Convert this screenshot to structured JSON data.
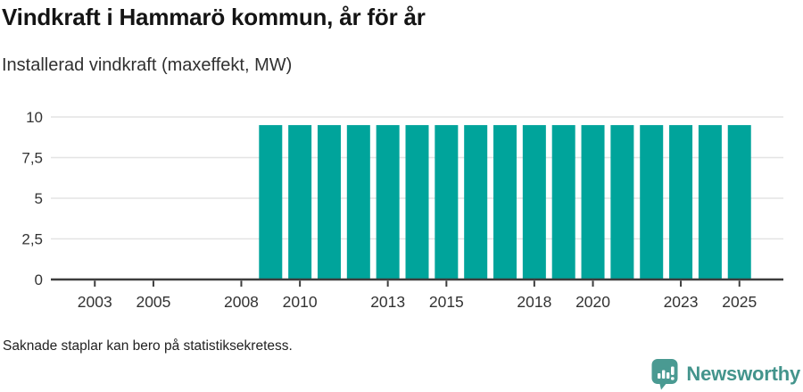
{
  "header": {
    "title": "Vindkraft i Hammarö kommun, år för år",
    "subtitle": "Installerad vindkraft (maxeffekt, MW)"
  },
  "chart_data": {
    "type": "bar",
    "title": "Vindkraft i Hammarö kommun, år för år",
    "subtitle": "Installerad vindkraft (maxeffekt, MW)",
    "unit": "MW",
    "categories": [
      "2002",
      "2003",
      "2004",
      "2005",
      "2006",
      "2007",
      "2008",
      "2009",
      "2010",
      "2011",
      "2012",
      "2013",
      "2014",
      "2015",
      "2016",
      "2017",
      "2018",
      "2019",
      "2020",
      "2021",
      "2022",
      "2023",
      "2024",
      "2025",
      "2026"
    ],
    "values": [
      null,
      null,
      null,
      null,
      null,
      null,
      null,
      9.5,
      9.5,
      9.5,
      9.5,
      9.5,
      9.5,
      9.5,
      9.5,
      9.5,
      9.5,
      9.5,
      9.5,
      9.5,
      9.5,
      9.5,
      9.5,
      9.5,
      null
    ],
    "x_tick_labels": [
      "2003",
      "2005",
      "2008",
      "2010",
      "2013",
      "2015",
      "2018",
      "2020",
      "2023",
      "2025"
    ],
    "y_ticks": [
      {
        "value": 0,
        "label": "0"
      },
      {
        "value": 2.5,
        "label": "2,5"
      },
      {
        "value": 5,
        "label": "5"
      },
      {
        "value": 7.5,
        "label": "7,5"
      },
      {
        "value": 10,
        "label": "10"
      }
    ],
    "ylim": [
      0,
      10
    ],
    "grid": "horizontal",
    "legend": "none",
    "bar_color": "#00a49b"
  },
  "footer": {
    "note": "Saknade staplar kan bero på statistiksekretess.",
    "brand": "Newsworthy"
  },
  "colors": {
    "bar": "#00a49b",
    "brand": "#43948c",
    "brand_icon": "#4a9a92",
    "axis": "#3d3d3d",
    "grid": "#e4e4e4",
    "tick_text": "#333333"
  }
}
